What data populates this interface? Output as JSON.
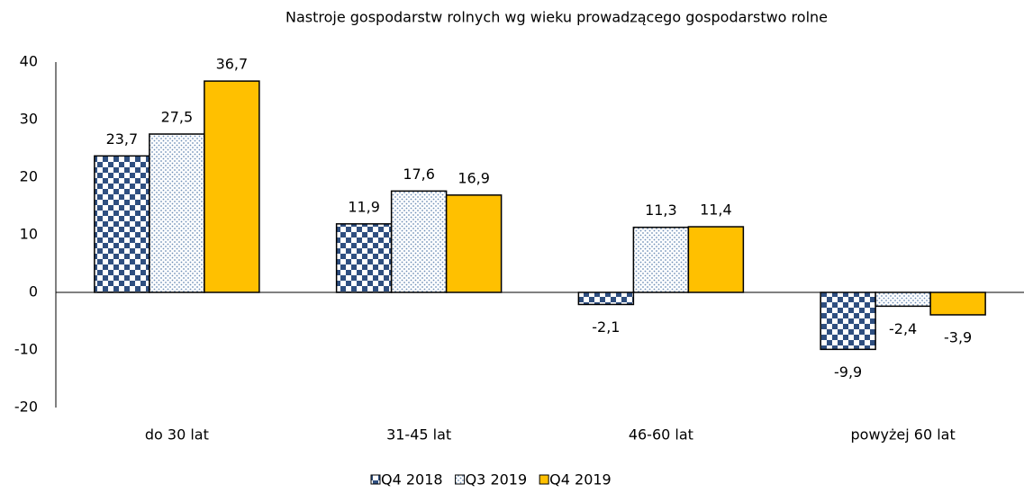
{
  "chart_data": {
    "type": "bar",
    "title": "Nastroje gospodarstw rolnych wg wieku prowadzącego gospodarstwo rolne",
    "categories": [
      "do 30 lat",
      "31-45 lat",
      "46-60 lat",
      "powyżej 60 lat"
    ],
    "series": [
      {
        "name": "Q4 2018",
        "color": "#2f4f80",
        "pattern": "checker",
        "values": [
          23.7,
          11.9,
          -2.1,
          -9.9
        ],
        "value_labels": [
          "23,7",
          "11,9",
          "-2,1",
          "-9,9"
        ]
      },
      {
        "name": "Q3 2019",
        "color": "#6f8fb8",
        "pattern": "dots",
        "values": [
          27.5,
          17.6,
          11.3,
          -2.4
        ],
        "value_labels": [
          "27,5",
          "17,6",
          "11,3",
          "-2,4"
        ]
      },
      {
        "name": "Q4 2019",
        "color": "#ffc000",
        "pattern": "solid",
        "values": [
          36.7,
          16.9,
          11.4,
          -3.9
        ],
        "value_labels": [
          "36,7",
          "16,9",
          "11,4",
          "-3,9"
        ]
      }
    ],
    "ylim": [
      -20,
      40
    ],
    "yticks": [
      -20,
      -10,
      0,
      10,
      20,
      30,
      40
    ],
    "grid": false,
    "legend": "bottom"
  }
}
